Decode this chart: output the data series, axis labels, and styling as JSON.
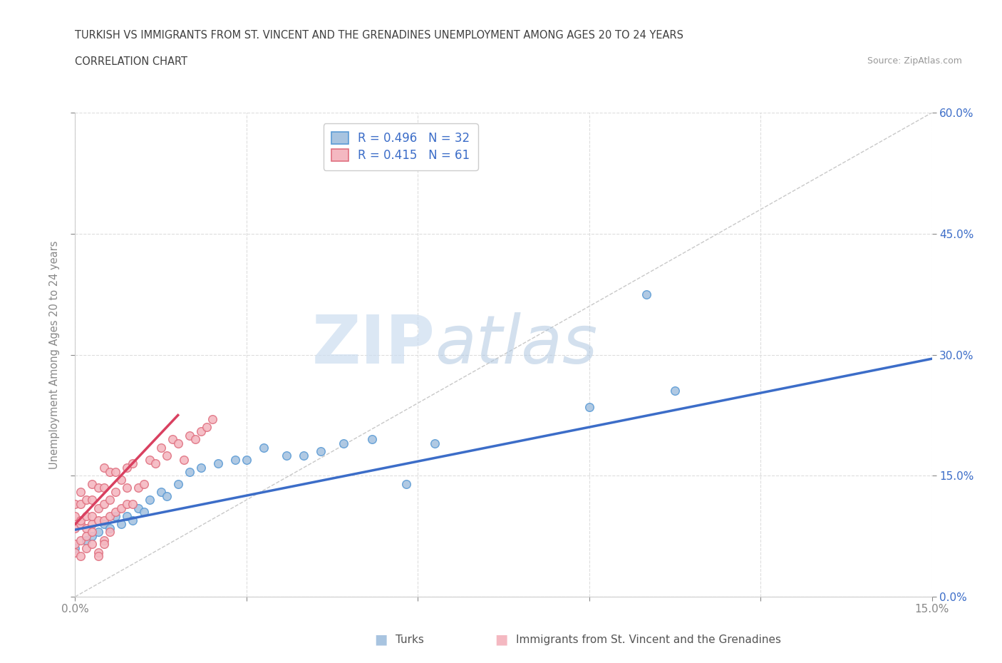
{
  "title_line1": "TURKISH VS IMMIGRANTS FROM ST. VINCENT AND THE GRENADINES UNEMPLOYMENT AMONG AGES 20 TO 24 YEARS",
  "title_line2": "CORRELATION CHART",
  "source": "Source: ZipAtlas.com",
  "ylabel": "Unemployment Among Ages 20 to 24 years",
  "xlim": [
    0.0,
    0.15
  ],
  "ylim": [
    0.0,
    0.6
  ],
  "xticks": [
    0.0,
    0.03,
    0.06,
    0.09,
    0.12,
    0.15
  ],
  "yticks": [
    0.0,
    0.15,
    0.3,
    0.45,
    0.6
  ],
  "xtick_labels": [
    "0.0%",
    "",
    "",
    "",
    "",
    "15.0%"
  ],
  "right_ytick_labels": [
    "0.0%",
    "15.0%",
    "30.0%",
    "45.0%",
    "60.0%"
  ],
  "grid_color": "#dddddd",
  "watermark_zip": "ZIP",
  "watermark_atlas": "atlas",
  "turks_color": "#a8c4e0",
  "turks_edge_color": "#5b9bd5",
  "svg_color": "#f4b8c1",
  "svg_edge_color": "#e07080",
  "turks_R": 0.496,
  "turks_N": 32,
  "svg_R": 0.415,
  "svg_N": 61,
  "turks_trendline_color": "#3c6dc8",
  "svg_trendline_color": "#d94060",
  "diagonal_color": "#bbbbbb",
  "turks_scatter_x": [
    0.0,
    0.002,
    0.003,
    0.004,
    0.005,
    0.006,
    0.007,
    0.008,
    0.009,
    0.01,
    0.011,
    0.012,
    0.013,
    0.015,
    0.016,
    0.018,
    0.02,
    0.022,
    0.025,
    0.028,
    0.03,
    0.033,
    0.037,
    0.04,
    0.043,
    0.047,
    0.052,
    0.058,
    0.063,
    0.09,
    0.1,
    0.105
  ],
  "turks_scatter_y": [
    0.06,
    0.07,
    0.075,
    0.08,
    0.09,
    0.085,
    0.1,
    0.09,
    0.1,
    0.095,
    0.11,
    0.105,
    0.12,
    0.13,
    0.125,
    0.14,
    0.155,
    0.16,
    0.165,
    0.17,
    0.17,
    0.185,
    0.175,
    0.175,
    0.18,
    0.19,
    0.195,
    0.14,
    0.19,
    0.235,
    0.375,
    0.255
  ],
  "svg_scatter_x": [
    0.0,
    0.0,
    0.0,
    0.001,
    0.001,
    0.001,
    0.001,
    0.002,
    0.002,
    0.002,
    0.003,
    0.003,
    0.003,
    0.003,
    0.004,
    0.004,
    0.004,
    0.005,
    0.005,
    0.005,
    0.005,
    0.006,
    0.006,
    0.006,
    0.007,
    0.007,
    0.007,
    0.008,
    0.008,
    0.009,
    0.009,
    0.009,
    0.01,
    0.01,
    0.011,
    0.012,
    0.013,
    0.014,
    0.015,
    0.016,
    0.017,
    0.018,
    0.019,
    0.02,
    0.021,
    0.022,
    0.023,
    0.024,
    0.0,
    0.0,
    0.001,
    0.002,
    0.003,
    0.004,
    0.005,
    0.006,
    0.001,
    0.002,
    0.003,
    0.004,
    0.005
  ],
  "svg_scatter_y": [
    0.085,
    0.1,
    0.115,
    0.09,
    0.095,
    0.115,
    0.13,
    0.085,
    0.1,
    0.12,
    0.09,
    0.1,
    0.12,
    0.14,
    0.095,
    0.11,
    0.135,
    0.095,
    0.115,
    0.135,
    0.16,
    0.1,
    0.12,
    0.155,
    0.105,
    0.13,
    0.155,
    0.11,
    0.145,
    0.115,
    0.135,
    0.16,
    0.115,
    0.165,
    0.135,
    0.14,
    0.17,
    0.165,
    0.185,
    0.175,
    0.195,
    0.19,
    0.17,
    0.2,
    0.195,
    0.205,
    0.21,
    0.22,
    0.055,
    0.065,
    0.07,
    0.075,
    0.08,
    0.055,
    0.07,
    0.08,
    0.05,
    0.06,
    0.065,
    0.05,
    0.065
  ],
  "turks_trend_x0": 0.0,
  "turks_trend_y0": 0.083,
  "turks_trend_x1": 0.15,
  "turks_trend_y1": 0.295,
  "svg_trend_x0": 0.0,
  "svg_trend_y0": 0.09,
  "svg_trend_x1": 0.018,
  "svg_trend_y1": 0.225,
  "background_color": "#ffffff",
  "title_color": "#404040",
  "axis_label_color": "#888888",
  "tick_color": "#888888"
}
